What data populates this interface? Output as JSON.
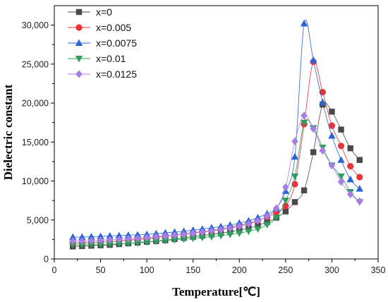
{
  "chart_data": {
    "type": "line",
    "title": "",
    "xlabel": "Temperature[℃]",
    "ylabel": "Dielectric constant",
    "xlim": [
      0,
      350
    ],
    "ylim": [
      0,
      32500
    ],
    "xticks": [
      0,
      50,
      100,
      150,
      200,
      250,
      300,
      350
    ],
    "yticks": [
      0,
      5000,
      10000,
      15000,
      20000,
      25000,
      30000
    ],
    "xtick_labels": [
      "0",
      "50",
      "100",
      "150",
      "200",
      "250",
      "300",
      "350"
    ],
    "ytick_labels": [
      "0",
      "5,000",
      "10,000",
      "15,000",
      "20,000",
      "25,000",
      "30,000"
    ],
    "grid": false,
    "legend_position": "top-left",
    "x": [
      20,
      30,
      40,
      50,
      60,
      70,
      80,
      90,
      100,
      110,
      120,
      130,
      140,
      150,
      160,
      170,
      180,
      190,
      200,
      210,
      220,
      230,
      240,
      250,
      260,
      270,
      280,
      290,
      300,
      310,
      320,
      330
    ],
    "series": [
      {
        "name": "x=0",
        "color": "#4a4a4a",
        "marker": "square",
        "values": [
          1600,
          1650,
          1700,
          1750,
          1800,
          1900,
          2000,
          2100,
          2200,
          2300,
          2400,
          2550,
          2700,
          2850,
          3000,
          3150,
          3300,
          3500,
          3700,
          3950,
          4300,
          4750,
          5300,
          6100,
          7300,
          8800,
          13700,
          19800,
          18900,
          16600,
          14200,
          12700
        ]
      },
      {
        "name": "x=0.005",
        "color": "#e8333a",
        "marker": "circle",
        "values": [
          2000,
          2050,
          2100,
          2150,
          2200,
          2300,
          2400,
          2500,
          2600,
          2750,
          2900,
          3050,
          3200,
          3350,
          3500,
          3650,
          3850,
          4050,
          4300,
          4600,
          4950,
          5400,
          6000,
          6800,
          9600,
          17300,
          25300,
          21400,
          17100,
          14500,
          11900,
          10500
        ]
      },
      {
        "name": "x=0.0075",
        "color": "#2a64d4",
        "marker": "triangle-up",
        "values": [
          2800,
          2800,
          2850,
          2900,
          2950,
          3000,
          3050,
          3100,
          3150,
          3250,
          3350,
          3450,
          3550,
          3700,
          3850,
          4000,
          4150,
          4350,
          4600,
          4900,
          5300,
          5800,
          6500,
          8700,
          13100,
          30200,
          25500,
          20100,
          15800,
          12700,
          10200,
          9000
        ]
      },
      {
        "name": "x=0.01",
        "color": "#2e9e5c",
        "marker": "triangle-down",
        "values": [
          1800,
          1800,
          1850,
          1850,
          1900,
          1950,
          2000,
          2050,
          2150,
          2250,
          2350,
          2450,
          2550,
          2650,
          2750,
          2850,
          3000,
          3150,
          3300,
          3550,
          3850,
          4400,
          5300,
          7500,
          10600,
          17500,
          16800,
          14300,
          12000,
          10600,
          8600,
          7300
        ]
      },
      {
        "name": "x=0.0125",
        "color": "#a77ee6",
        "marker": "diamond",
        "values": [
          2300,
          2300,
          2350,
          2400,
          2450,
          2500,
          2600,
          2650,
          2750,
          2850,
          2950,
          3050,
          3150,
          3300,
          3450,
          3600,
          3750,
          3950,
          4200,
          4500,
          4900,
          5500,
          6500,
          9200,
          15100,
          18400,
          16700,
          13900,
          12000,
          9900,
          8300,
          7400
        ]
      }
    ]
  }
}
